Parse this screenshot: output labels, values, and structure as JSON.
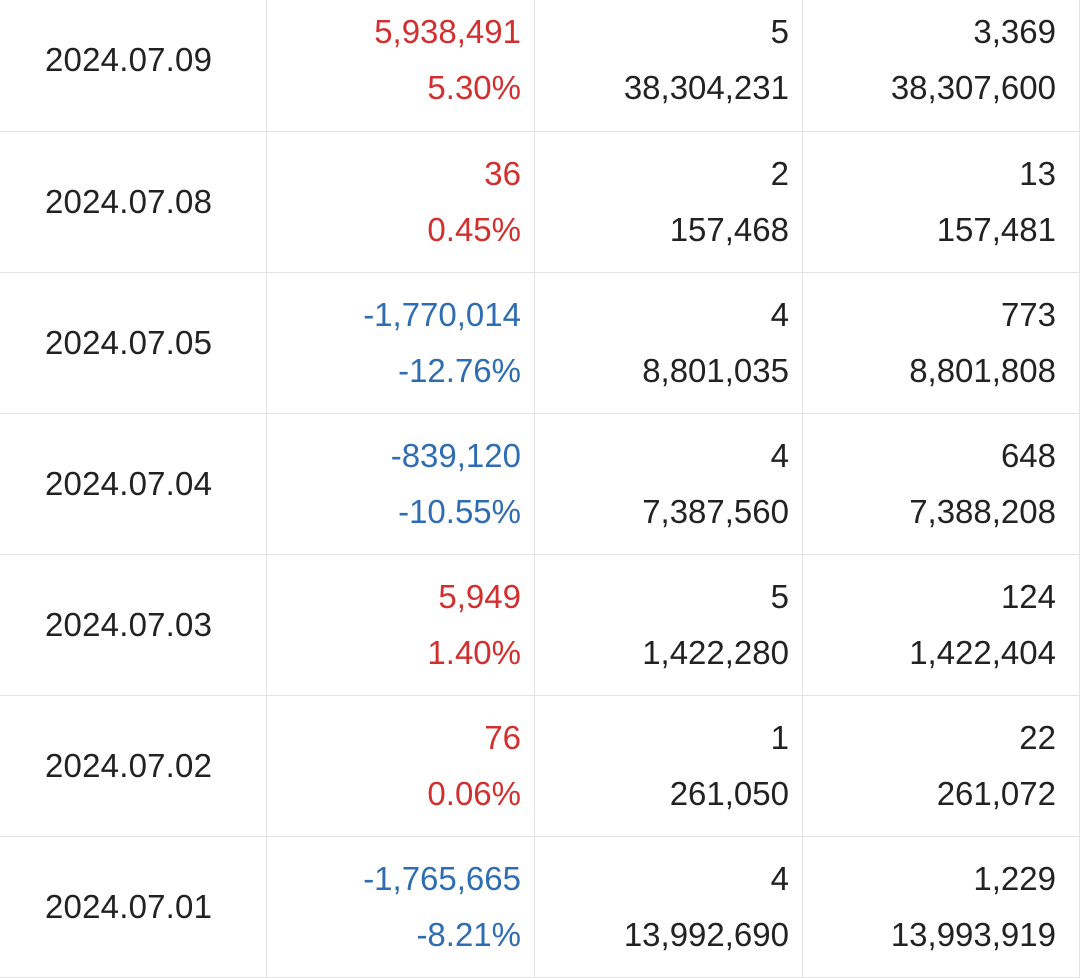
{
  "colors": {
    "up": "#d32f2f",
    "down": "#2f6db3",
    "text": "#222222",
    "grid": "#e3e3e3"
  },
  "rows": [
    {
      "date": "2024.07.09",
      "change": "5,938,491",
      "pct": "5.30%",
      "dir": "up",
      "a": "5",
      "b": "38,304,231",
      "c": "3,369",
      "d": "38,307,600"
    },
    {
      "date": "2024.07.08",
      "change": "36",
      "pct": "0.45%",
      "dir": "up",
      "a": "2",
      "b": "157,468",
      "c": "13",
      "d": "157,481"
    },
    {
      "date": "2024.07.05",
      "change": "-1,770,014",
      "pct": "-12.76%",
      "dir": "down",
      "a": "4",
      "b": "8,801,035",
      "c": "773",
      "d": "8,801,808"
    },
    {
      "date": "2024.07.04",
      "change": "-839,120",
      "pct": "-10.55%",
      "dir": "down",
      "a": "4",
      "b": "7,387,560",
      "c": "648",
      "d": "7,388,208"
    },
    {
      "date": "2024.07.03",
      "change": "5,949",
      "pct": "1.40%",
      "dir": "up",
      "a": "5",
      "b": "1,422,280",
      "c": "124",
      "d": "1,422,404"
    },
    {
      "date": "2024.07.02",
      "change": "76",
      "pct": "0.06%",
      "dir": "up",
      "a": "1",
      "b": "261,050",
      "c": "22",
      "d": "261,072"
    },
    {
      "date": "2024.07.01",
      "change": "-1,765,665",
      "pct": "-8.21%",
      "dir": "down",
      "a": "4",
      "b": "13,992,690",
      "c": "1,229",
      "d": "13,993,919"
    }
  ]
}
